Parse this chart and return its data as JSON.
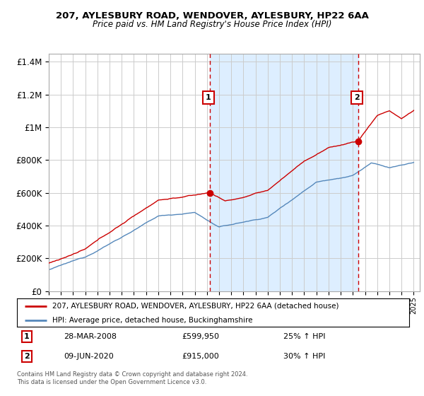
{
  "title1": "207, AYLESBURY ROAD, WENDOVER, AYLESBURY, HP22 6AA",
  "title2": "Price paid vs. HM Land Registry's House Price Index (HPI)",
  "red_label": "207, AYLESBURY ROAD, WENDOVER, AYLESBURY, HP22 6AA (detached house)",
  "blue_label": "HPI: Average price, detached house, Buckinghamshire",
  "transaction1_date": "28-MAR-2008",
  "transaction1_price": "£599,950",
  "transaction1_hpi": "25% ↑ HPI",
  "transaction1_year": 2008.23,
  "transaction1_value": 599950,
  "transaction2_date": "09-JUN-2020",
  "transaction2_price": "£915,000",
  "transaction2_hpi": "30% ↑ HPI",
  "transaction2_year": 2020.44,
  "transaction2_value": 915000,
  "footer": "Contains HM Land Registry data © Crown copyright and database right 2024.\nThis data is licensed under the Open Government Licence v3.0.",
  "ylim": [
    0,
    1450000
  ],
  "yticks": [
    0,
    200000,
    400000,
    600000,
    800000,
    1000000,
    1200000,
    1400000
  ],
  "ytick_labels": [
    "£0",
    "£200K",
    "£400K",
    "£600K",
    "£800K",
    "£1M",
    "£1.2M",
    "£1.4M"
  ],
  "xmin": 1995,
  "xmax": 2025.5,
  "red_color": "#cc0000",
  "blue_color": "#5588bb",
  "shade_color": "#ddeeff",
  "vline_color": "#cc0000",
  "background_color": "#ffffff",
  "grid_color": "#cccccc"
}
